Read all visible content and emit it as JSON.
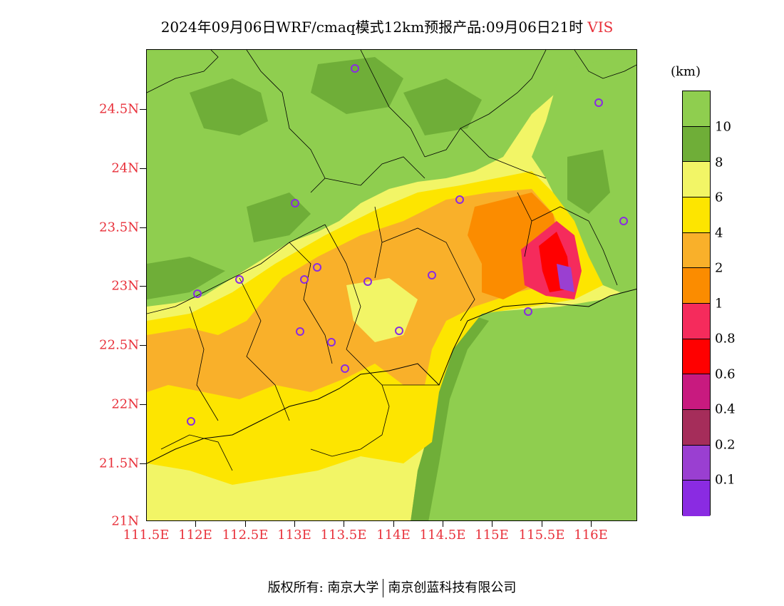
{
  "title": {
    "main": "2024年09月06日WRF/cmaq模式12km预报产品:09月06日21时",
    "variable": "VIS"
  },
  "legend": {
    "units": "(km)",
    "labels": [
      "10",
      "8",
      "6",
      "4",
      "2",
      "1",
      "0.8",
      "0.6",
      "0.4",
      "0.2",
      "0.1"
    ],
    "colors": [
      "#8fce4f",
      "#6fae38",
      "#f2f566",
      "#fde500",
      "#f9b02a",
      "#fb8c00",
      "#f52b5c",
      "#ff0000",
      "#c81a7f",
      "#a52d5a",
      "#9a3fd1",
      "#8a2be2"
    ]
  },
  "axes": {
    "lat_labels": [
      "24.5N",
      "24N",
      "23.5N",
      "23N",
      "22.5N",
      "22N",
      "21.5N",
      "21N"
    ],
    "lon_labels": [
      "111.5E",
      "112E",
      "112.5E",
      "113E",
      "113.5E",
      "114E",
      "114.5E",
      "115E",
      "115.5E",
      "116E"
    ]
  },
  "footer": {
    "left": "版权所有: 南京大学",
    "right": "南京创蓝科技有限公司"
  },
  "colors": {
    "axis_label": "#e8303a",
    "station_marker": "#8a2be2"
  }
}
